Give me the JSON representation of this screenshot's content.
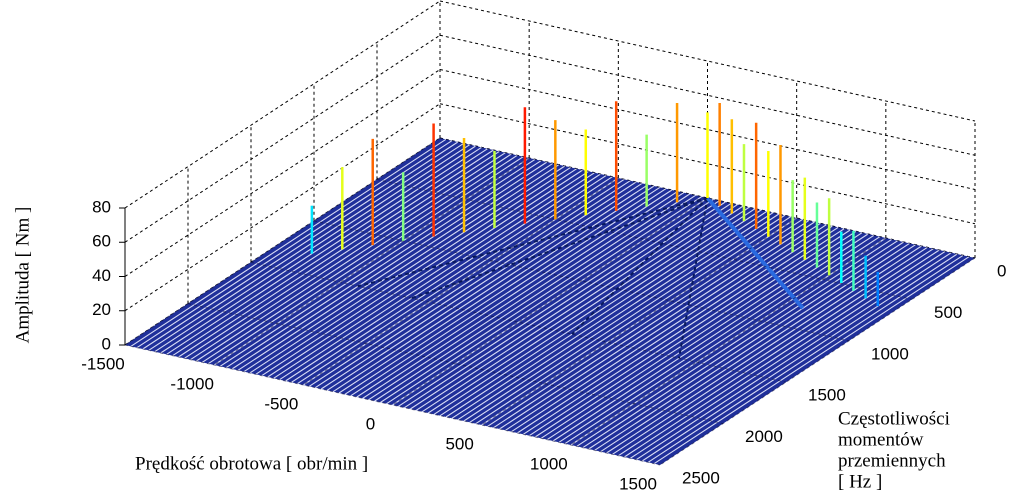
{
  "chart_data": {
    "type": "waterfall3d",
    "xlabel": "Prędkość obrotowa  [ obr/min ]",
    "ylabel": [
      "Częstotliwości",
      "momentów",
      "przemiennych",
      "[ Hz ]"
    ],
    "zlabel": "Amplituda [ Nm ]",
    "xlim": [
      -1500,
      1500
    ],
    "xticks": [
      -1500,
      -1000,
      -500,
      0,
      500,
      1000,
      1500
    ],
    "ylim": [
      0,
      2500
    ],
    "yticks": [
      0,
      500,
      1000,
      1500,
      2000,
      2500
    ],
    "zlim": [
      0,
      80
    ],
    "zticks": [
      0,
      20,
      40,
      60,
      80
    ],
    "grid": true,
    "colormap": "jet",
    "peaks": {
      "x": [
        -1300,
        -1200,
        -1100,
        -1000,
        -900,
        -800,
        -700,
        -600,
        -500,
        -400,
        -300,
        -200,
        -100,
        0,
        100,
        200,
        300,
        400,
        500,
        600,
        700,
        800,
        900,
        1000,
        1100,
        1200,
        1300,
        1400
      ],
      "y": [
        1300,
        1200,
        1100,
        1000,
        900,
        800,
        700,
        600,
        500,
        400,
        300,
        200,
        100,
        0,
        45,
        90,
        135,
        180,
        225,
        270,
        315,
        360,
        405,
        450,
        495,
        540,
        585,
        630
      ],
      "z": [
        28,
        48,
        62,
        40,
        66,
        55,
        45,
        68,
        58,
        50,
        64,
        42,
        58,
        50,
        60,
        55,
        45,
        62,
        50,
        58,
        42,
        48,
        38,
        45,
        30,
        35,
        25,
        20
      ]
    }
  }
}
